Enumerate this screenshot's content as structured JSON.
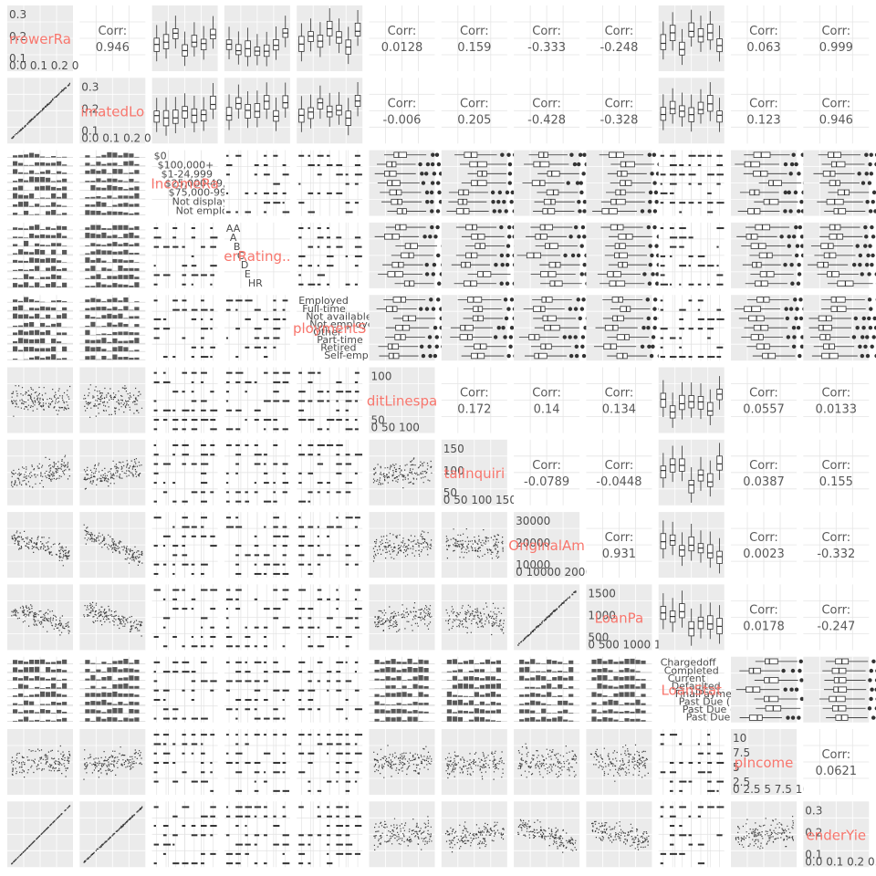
{
  "chart_data": {
    "type": "scatter",
    "kind": "pairs-plot",
    "title": "",
    "size": 12,
    "variables": [
      {
        "label": "BorrowerRa",
        "kind": "numeric"
      },
      {
        "label": "EstimatedLo",
        "kind": "numeric"
      },
      {
        "label": "IncomeRange",
        "kind": "categorical"
      },
      {
        "label": "ProsperRating..",
        "kind": "categorical"
      },
      {
        "label": "EmploymentS",
        "kind": "categorical"
      },
      {
        "label": "CreditLinespa",
        "kind": "numeric"
      },
      {
        "label": "TotalInquiri",
        "kind": "numeric"
      },
      {
        "label": "OriginalAm",
        "kind": "numeric"
      },
      {
        "label": "LoanPa",
        "kind": "numeric"
      },
      {
        "label": "LoanStatus",
        "kind": "categorical"
      },
      {
        "label": "pIncome",
        "kind": "numeric"
      },
      {
        "label": "LenderYie",
        "kind": "numeric"
      }
    ],
    "diagonal_labels": [
      "rrowerRa",
      "imatedLo",
      "IncomeRa",
      "erRating..",
      "ploymentS",
      "ditLinespa",
      "talInquiri",
      "OriginalAm",
      "LoanPa",
      "LoanStat",
      "pIncome",
      "enderYie"
    ],
    "diagonal_ticks": [
      {
        "y": [
          "0.3",
          "0.2",
          "0.1"
        ],
        "x": "0.0 0.1 0.2 0.3"
      },
      {
        "y": [
          "0.3",
          "0.2",
          "0.1"
        ],
        "x": "0.0 0.1 0.2 0.3"
      },
      {
        "y": [
          "$0",
          "$100,000+",
          "$1-24,999",
          "$25,000-49,999",
          "$75,000-99,999",
          "Not displayed",
          "Not employed"
        ],
        "x": ""
      },
      {
        "y": [
          "AA",
          "A",
          "B",
          "C",
          "D",
          "E",
          "HR"
        ],
        "x": ""
      },
      {
        "y": [
          "Employed",
          "Full-time",
          "Not available",
          "Not employed",
          "Other",
          "Part-time",
          "Retired",
          "Self-employed"
        ],
        "x": ""
      },
      {
        "y": [
          "100",
          "50"
        ],
        "x": "0 50 100"
      },
      {
        "y": [
          "150",
          "100",
          "50"
        ],
        "x": "0 50 100 150"
      },
      {
        "y": [
          "30000",
          "20000",
          "10000"
        ],
        "x": "0 10000 20000 30000"
      },
      {
        "y": [
          "1500",
          "1000",
          "500"
        ],
        "x": "0 500 1000 1500 2000"
      },
      {
        "y": [
          "Chargedoff",
          "Completed",
          "Current",
          "Defaulted",
          "FinalPaymentInProgress",
          "Past Due (1-15 days)",
          "Past Due (16-30 days)",
          "Past Due (>120 days)"
        ],
        "x": ""
      },
      {
        "y": [
          "10",
          "7.5",
          "5",
          "2.5"
        ],
        "x": "0 2.5 5 7.5 10"
      },
      {
        "y": [
          "0.3",
          "0.2",
          "0.1"
        ],
        "x": "0.0 0.1 0.2 0.3"
      }
    ],
    "corr_label": "Corr:",
    "correlations": [
      {
        "row": 1,
        "col": 2,
        "value": "0.946"
      },
      {
        "row": 1,
        "col": 6,
        "value": "0.0128"
      },
      {
        "row": 1,
        "col": 7,
        "value": "0.159"
      },
      {
        "row": 1,
        "col": 8,
        "value": "-0.333"
      },
      {
        "row": 1,
        "col": 9,
        "value": "-0.248"
      },
      {
        "row": 1,
        "col": 11,
        "value": "0.063"
      },
      {
        "row": 1,
        "col": 12,
        "value": "0.999"
      },
      {
        "row": 2,
        "col": 6,
        "value": "-0.006"
      },
      {
        "row": 2,
        "col": 7,
        "value": "0.205"
      },
      {
        "row": 2,
        "col": 8,
        "value": "-0.428"
      },
      {
        "row": 2,
        "col": 9,
        "value": "-0.328"
      },
      {
        "row": 2,
        "col": 11,
        "value": "0.123"
      },
      {
        "row": 2,
        "col": 12,
        "value": "0.946"
      },
      {
        "row": 6,
        "col": 7,
        "value": "0.172"
      },
      {
        "row": 6,
        "col": 8,
        "value": "0.14"
      },
      {
        "row": 6,
        "col": 9,
        "value": "0.134"
      },
      {
        "row": 6,
        "col": 11,
        "value": "0.0557"
      },
      {
        "row": 6,
        "col": 12,
        "value": "0.0133"
      },
      {
        "row": 7,
        "col": 8,
        "value": "-0.0789"
      },
      {
        "row": 7,
        "col": 9,
        "value": "-0.0448"
      },
      {
        "row": 7,
        "col": 11,
        "value": "0.0387"
      },
      {
        "row": 7,
        "col": 12,
        "value": "0.155"
      },
      {
        "row": 8,
        "col": 9,
        "value": "0.931"
      },
      {
        "row": 8,
        "col": 11,
        "value": "0.0023"
      },
      {
        "row": 8,
        "col": 12,
        "value": "-0.332"
      },
      {
        "row": 9,
        "col": 11,
        "value": "0.0178"
      },
      {
        "row": 9,
        "col": 12,
        "value": "-0.247"
      },
      {
        "row": 11,
        "col": 12,
        "value": "0.0621"
      }
    ],
    "grid": true
  },
  "colors": {
    "panel_bg": "#ebebeb",
    "grid": "#ffffff",
    "points": "#000000",
    "boxes": "#333333",
    "corr_text": "#595959",
    "diag_label": "#f8766d",
    "tick_text": "#4d4d4d"
  }
}
